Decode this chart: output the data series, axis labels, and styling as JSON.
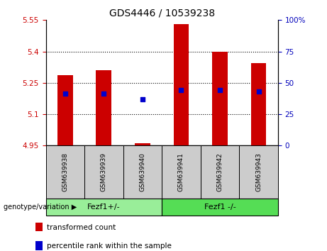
{
  "title": "GDS4446 / 10539238",
  "samples": [
    "GSM639938",
    "GSM639939",
    "GSM639940",
    "GSM639941",
    "GSM639942",
    "GSM639943"
  ],
  "bar_bottom": 4.95,
  "bar_tops": [
    5.285,
    5.31,
    4.96,
    5.53,
    5.4,
    5.345
  ],
  "blue_dots": [
    5.2,
    5.2,
    5.17,
    5.215,
    5.215,
    5.21
  ],
  "ylim": [
    4.95,
    5.55
  ],
  "yticks_left": [
    4.95,
    5.1,
    5.25,
    5.4,
    5.55
  ],
  "ytick_labels_left": [
    "4.95",
    "5.1",
    "5.25",
    "5.4",
    "5.55"
  ],
  "ytick_labels_right": [
    "0",
    "25",
    "50",
    "75",
    "100%"
  ],
  "bar_color": "#cc0000",
  "dot_color": "#0000cc",
  "grid_color": "#000000",
  "groups": [
    {
      "label": "Fezf1+/-",
      "start": 0,
      "end": 3,
      "color": "#99ee99"
    },
    {
      "label": "Fezf1 -/-",
      "start": 3,
      "end": 6,
      "color": "#55dd55"
    }
  ],
  "legend_items": [
    {
      "label": "transformed count",
      "color": "#cc0000"
    },
    {
      "label": "percentile rank within the sample",
      "color": "#0000cc"
    }
  ],
  "tick_label_color_left": "#cc0000",
  "tick_label_color_right": "#0000bb",
  "sample_box_color": "#cccccc",
  "genotype_label": "genotype/variation ▶"
}
